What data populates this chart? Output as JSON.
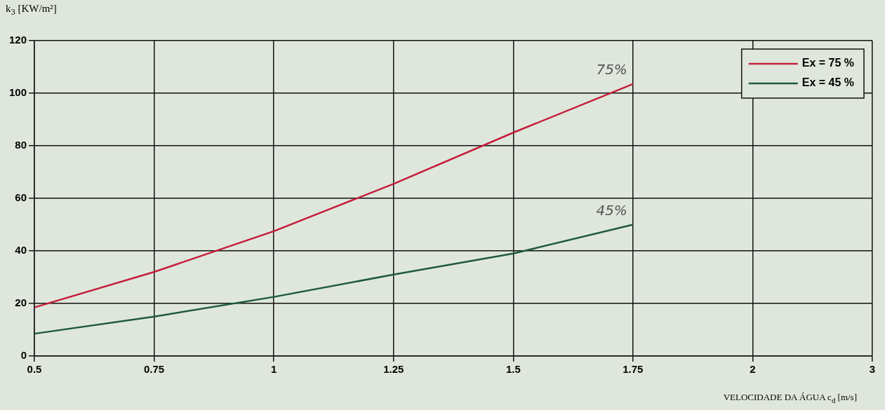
{
  "chart_data": {
    "type": "line",
    "ylabel": "k$_{3}$ [KW/m²]",
    "xlabel": "VELOCIDADE DA ÁGUA c$_{d}$ [m/s]",
    "categories": [
      "0.5",
      "0.75",
      "1",
      "1.25",
      "1.5",
      "1.75",
      "2",
      "3"
    ],
    "series": [
      {
        "name": "Ex = 75 %",
        "color": "#c41e3a",
        "values": [
          18.5,
          32,
          47.5,
          65.5,
          85,
          103.5,
          null,
          null
        ]
      },
      {
        "name": "Ex = 45 %",
        "color": "#1e5a3c",
        "values": [
          8.5,
          15,
          22.5,
          31,
          39,
          50,
          null,
          null
        ]
      }
    ],
    "ylim": [
      0,
      120
    ],
    "yticks": [
      0,
      20,
      40,
      60,
      80,
      100,
      120
    ],
    "grid": true,
    "legend": "top right",
    "marker": "none",
    "line_style": "solid",
    "annotations": [
      {
        "text": "75%",
        "x": "1.75",
        "y": 103.5
      },
      {
        "text": "45%",
        "x": "1.75",
        "y": 50
      }
    ]
  }
}
